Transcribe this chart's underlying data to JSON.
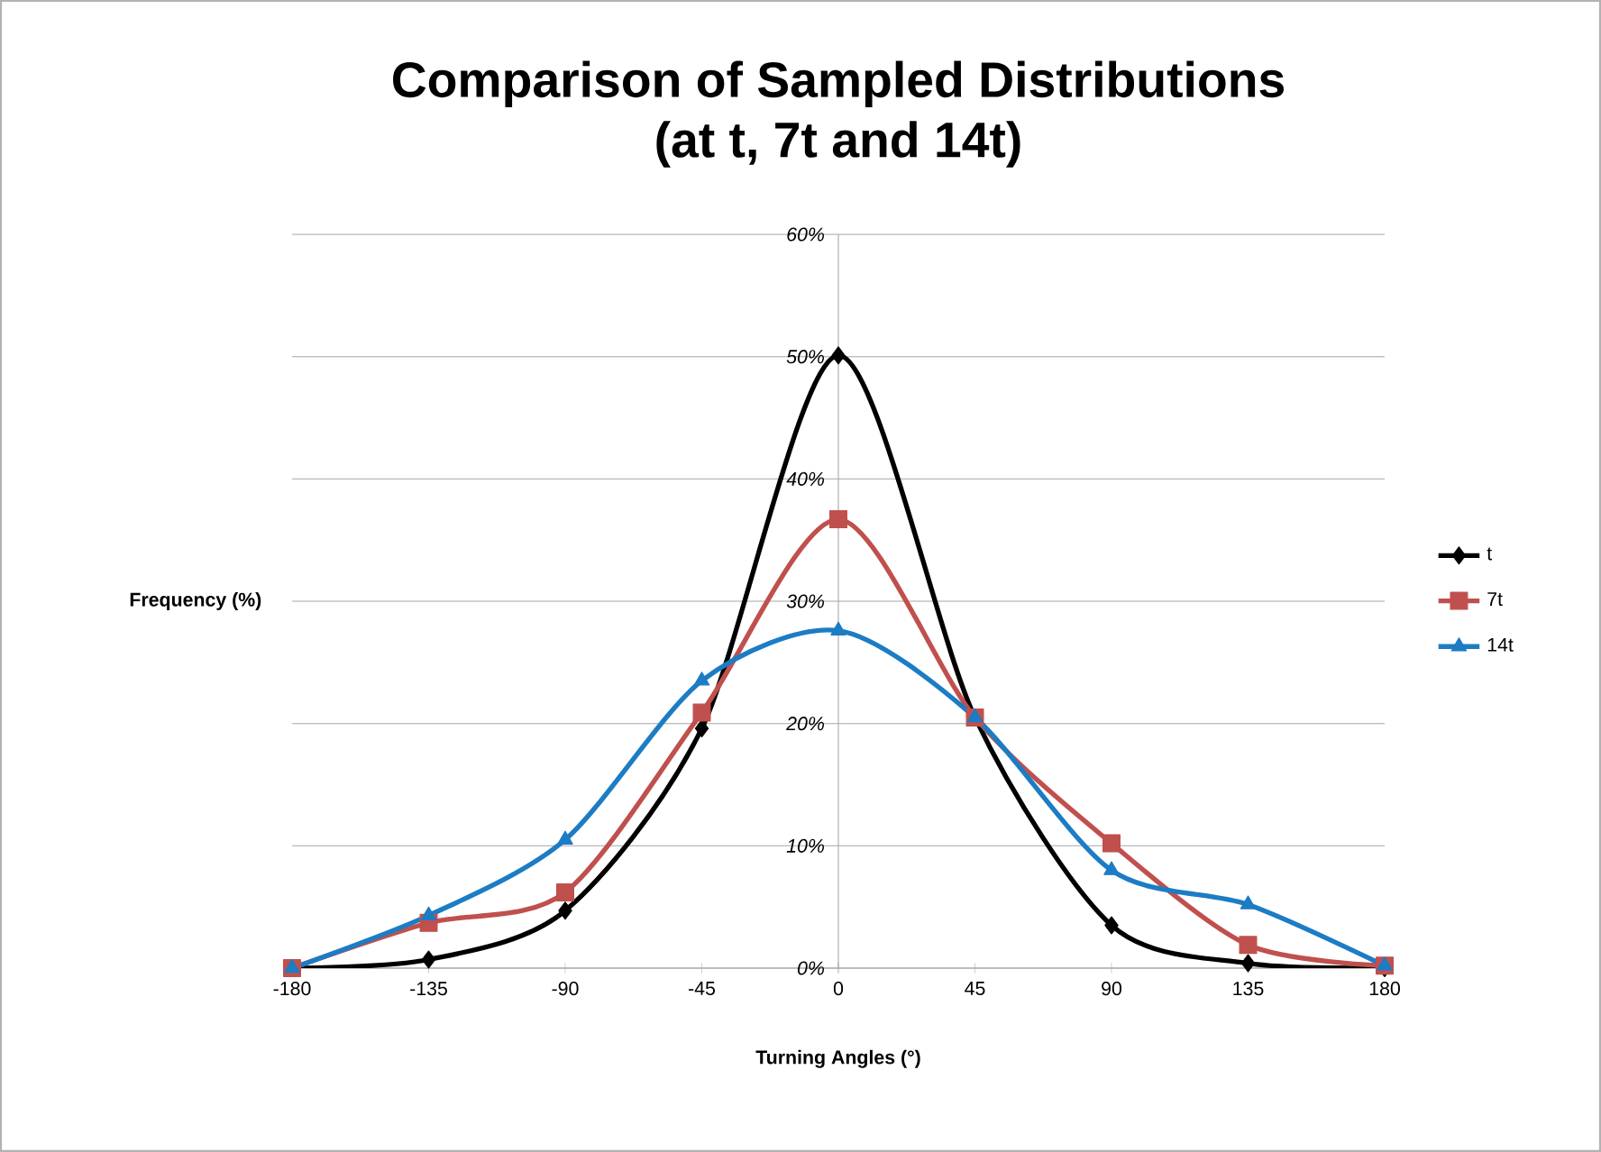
{
  "chart_data": {
    "type": "line",
    "title": "Comparison of Sampled Distributions",
    "subtitle": "(at t, 7t and 14t)",
    "xlabel": "Turning Angles (°)",
    "ylabel": "Frequency (%)",
    "x": [
      -180,
      -135,
      -90,
      -45,
      0,
      45,
      90,
      135,
      180
    ],
    "series": [
      {
        "name": "t",
        "color": "#000000",
        "marker": "diamond",
        "values": [
          0,
          0.7,
          4.7,
          19.6,
          50.1,
          20.5,
          3.5,
          0.4,
          0
        ]
      },
      {
        "name": "7t",
        "color": "#c0504d",
        "marker": "square",
        "values": [
          0,
          3.7,
          6.2,
          20.9,
          36.7,
          20.5,
          10.2,
          1.9,
          0.2
        ]
      },
      {
        "name": "14t",
        "color": "#1c7cc4",
        "marker": "triangle",
        "values": [
          0,
          4.3,
          10.5,
          23.5,
          27.6,
          20.5,
          8.0,
          5.2,
          0.2
        ]
      }
    ],
    "xlim": [
      -180,
      180
    ],
    "xticks": [
      -180,
      -135,
      -90,
      -45,
      0,
      45,
      90,
      135,
      180
    ],
    "ylim": [
      0,
      60
    ],
    "yticks": [
      {
        "value": 0,
        "label": "0%"
      },
      {
        "value": 10,
        "label": "10%"
      },
      {
        "value": 20,
        "label": "20%"
      },
      {
        "value": 30,
        "label": "30%"
      },
      {
        "value": 40,
        "label": "40%"
      },
      {
        "value": 50,
        "label": "50%"
      },
      {
        "value": 60,
        "label": "60%"
      }
    ],
    "grid": "y",
    "legend": "right",
    "line_style": "solid"
  }
}
